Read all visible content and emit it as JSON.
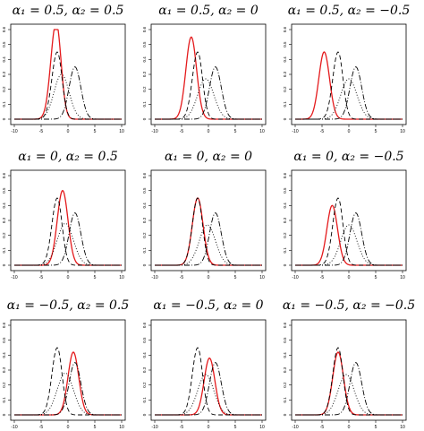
{
  "chart_data": [
    {
      "type": "line",
      "title": "α₁ = 0.5, α₂ = 0.5",
      "xlim": [
        -10,
        10
      ],
      "ylim": [
        0,
        0.6
      ],
      "x_ticks": [
        -10,
        -5,
        0,
        5,
        10
      ],
      "y_ticks": [
        0,
        0.1,
        0.2,
        0.3,
        0.4,
        0.5,
        0.6
      ],
      "series": [
        {
          "style": "solid",
          "color": "#e41a1c",
          "mode": -2.2,
          "peak": 0.65,
          "sd_left": 1.0,
          "sd_right": 0.9
        },
        {
          "style": "dashed",
          "color": "#000000",
          "mode": -2.0,
          "peak": 0.45,
          "sd_left": 1.0,
          "sd_right": 0.9
        },
        {
          "style": "dotted",
          "color": "#000000",
          "mode": -1.2,
          "peak": 0.3,
          "sd_left": 1.4,
          "sd_right": 1.4
        },
        {
          "style": "dotdash",
          "color": "#000000",
          "mode": 1.3,
          "peak": 0.35,
          "sd_left": 1.1,
          "sd_right": 1.1
        }
      ]
    },
    {
      "type": "line",
      "title": "α₁ = 0.5, α₂ = 0",
      "xlim": [
        -10,
        10
      ],
      "ylim": [
        0,
        0.6
      ],
      "x_ticks": [
        -10,
        -5,
        0,
        5,
        10
      ],
      "y_ticks": [
        0,
        0.1,
        0.2,
        0.3,
        0.4,
        0.5,
        0.6
      ],
      "series": [
        {
          "style": "solid",
          "color": "#e41a1c",
          "mode": -3.2,
          "peak": 0.55,
          "sd_left": 1.0,
          "sd_right": 1.0
        },
        {
          "style": "dashed",
          "color": "#000000",
          "mode": -2.0,
          "peak": 0.45,
          "sd_left": 1.0,
          "sd_right": 0.9
        },
        {
          "style": "dotted",
          "color": "#000000",
          "mode": -0.5,
          "peak": 0.27,
          "sd_left": 1.5,
          "sd_right": 1.5
        },
        {
          "style": "dotdash",
          "color": "#000000",
          "mode": 1.3,
          "peak": 0.35,
          "sd_left": 1.1,
          "sd_right": 1.1
        }
      ]
    },
    {
      "type": "line",
      "title": "α₁ = 0.5, α₂ = −0.5",
      "xlim": [
        -10,
        10
      ],
      "ylim": [
        0,
        0.6
      ],
      "x_ticks": [
        -10,
        -5,
        0,
        5,
        10
      ],
      "y_ticks": [
        0,
        0.1,
        0.2,
        0.3,
        0.4,
        0.5,
        0.6
      ],
      "series": [
        {
          "style": "solid",
          "color": "#e41a1c",
          "mode": -4.6,
          "peak": 0.45,
          "sd_left": 1.0,
          "sd_right": 1.0
        },
        {
          "style": "dashed",
          "color": "#000000",
          "mode": -2.0,
          "peak": 0.45,
          "sd_left": 1.0,
          "sd_right": 0.9
        },
        {
          "style": "dotted",
          "color": "#000000",
          "mode": 0.0,
          "peak": 0.27,
          "sd_left": 1.5,
          "sd_right": 1.5
        },
        {
          "style": "dotdash",
          "color": "#000000",
          "mode": 1.3,
          "peak": 0.35,
          "sd_left": 1.1,
          "sd_right": 1.1
        }
      ]
    },
    {
      "type": "line",
      "title": "α₁ = 0, α₂ = 0.5",
      "xlim": [
        -10,
        10
      ],
      "ylim": [
        0,
        0.6
      ],
      "x_ticks": [
        -10,
        -5,
        0,
        5,
        10
      ],
      "y_ticks": [
        0,
        0.1,
        0.2,
        0.3,
        0.4,
        0.5,
        0.6
      ],
      "series": [
        {
          "style": "solid",
          "color": "#e41a1c",
          "mode": -1.0,
          "peak": 0.5,
          "sd_left": 1.0,
          "sd_right": 1.0
        },
        {
          "style": "dashed",
          "color": "#000000",
          "mode": -2.0,
          "peak": 0.45,
          "sd_left": 1.0,
          "sd_right": 0.9
        },
        {
          "style": "dotted",
          "color": "#000000",
          "mode": -0.5,
          "peak": 0.28,
          "sd_left": 1.5,
          "sd_right": 1.5
        },
        {
          "style": "dotdash",
          "color": "#000000",
          "mode": 1.3,
          "peak": 0.35,
          "sd_left": 1.1,
          "sd_right": 1.1
        }
      ]
    },
    {
      "type": "line",
      "title": "α₁ = 0, α₂ = 0",
      "xlim": [
        -10,
        10
      ],
      "ylim": [
        0,
        0.6
      ],
      "x_ticks": [
        -10,
        -5,
        0,
        5,
        10
      ],
      "y_ticks": [
        0,
        0.1,
        0.2,
        0.3,
        0.4,
        0.5,
        0.6
      ],
      "series": [
        {
          "style": "solid",
          "color": "#e41a1c",
          "mode": -2.0,
          "peak": 0.45,
          "sd_left": 1.0,
          "sd_right": 1.0
        },
        {
          "style": "dashed",
          "color": "#000000",
          "mode": -2.0,
          "peak": 0.45,
          "sd_left": 1.0,
          "sd_right": 0.9
        },
        {
          "style": "dotted",
          "color": "#000000",
          "mode": -0.2,
          "peak": 0.27,
          "sd_left": 1.5,
          "sd_right": 1.5
        },
        {
          "style": "dotdash",
          "color": "#000000",
          "mode": 1.3,
          "peak": 0.35,
          "sd_left": 1.1,
          "sd_right": 1.1
        }
      ]
    },
    {
      "type": "line",
      "title": "α₁ = 0, α₂ = −0.5",
      "xlim": [
        -10,
        10
      ],
      "ylim": [
        0,
        0.6
      ],
      "x_ticks": [
        -10,
        -5,
        0,
        5,
        10
      ],
      "y_ticks": [
        0,
        0.1,
        0.2,
        0.3,
        0.4,
        0.5,
        0.6
      ],
      "series": [
        {
          "style": "solid",
          "color": "#e41a1c",
          "mode": -3.1,
          "peak": 0.4,
          "sd_left": 1.0,
          "sd_right": 1.0
        },
        {
          "style": "dashed",
          "color": "#000000",
          "mode": -2.0,
          "peak": 0.45,
          "sd_left": 1.0,
          "sd_right": 0.9
        },
        {
          "style": "dotted",
          "color": "#000000",
          "mode": 0.0,
          "peak": 0.27,
          "sd_left": 1.5,
          "sd_right": 1.5
        },
        {
          "style": "dotdash",
          "color": "#000000",
          "mode": 1.3,
          "peak": 0.35,
          "sd_left": 1.1,
          "sd_right": 1.1
        }
      ]
    },
    {
      "type": "line",
      "title": "α₁ = −0.5, α₂ = 0.5",
      "xlim": [
        -10,
        10
      ],
      "ylim": [
        0,
        0.6
      ],
      "x_ticks": [
        -10,
        -5,
        0,
        5,
        10
      ],
      "y_ticks": [
        0,
        0.1,
        0.2,
        0.3,
        0.4,
        0.5,
        0.6
      ],
      "series": [
        {
          "style": "solid",
          "color": "#e41a1c",
          "mode": 1.0,
          "peak": 0.42,
          "sd_left": 1.0,
          "sd_right": 1.0
        },
        {
          "style": "dashed",
          "color": "#000000",
          "mode": -2.0,
          "peak": 0.45,
          "sd_left": 1.0,
          "sd_right": 0.9
        },
        {
          "style": "dotted",
          "color": "#000000",
          "mode": -0.5,
          "peak": 0.28,
          "sd_left": 1.5,
          "sd_right": 1.5
        },
        {
          "style": "dotdash",
          "color": "#000000",
          "mode": 1.3,
          "peak": 0.35,
          "sd_left": 1.1,
          "sd_right": 1.1
        }
      ]
    },
    {
      "type": "line",
      "title": "α₁ = −0.5, α₂ = 0",
      "xlim": [
        -10,
        10
      ],
      "ylim": [
        0,
        0.6
      ],
      "x_ticks": [
        -10,
        -5,
        0,
        5,
        10
      ],
      "y_ticks": [
        0,
        0.1,
        0.2,
        0.3,
        0.4,
        0.5,
        0.6
      ],
      "series": [
        {
          "style": "solid",
          "color": "#e41a1c",
          "mode": 0.2,
          "peak": 0.38,
          "sd_left": 1.0,
          "sd_right": 1.0
        },
        {
          "style": "dashed",
          "color": "#000000",
          "mode": -2.0,
          "peak": 0.45,
          "sd_left": 1.0,
          "sd_right": 0.9
        },
        {
          "style": "dotted",
          "color": "#000000",
          "mode": -0.5,
          "peak": 0.27,
          "sd_left": 1.5,
          "sd_right": 1.5
        },
        {
          "style": "dotdash",
          "color": "#000000",
          "mode": 1.3,
          "peak": 0.35,
          "sd_left": 1.1,
          "sd_right": 1.1
        }
      ]
    },
    {
      "type": "line",
      "title": "α₁ = −0.5, α₂ = −0.5",
      "xlim": [
        -10,
        10
      ],
      "ylim": [
        0,
        0.6
      ],
      "x_ticks": [
        -10,
        -5,
        0,
        5,
        10
      ],
      "y_ticks": [
        0,
        0.1,
        0.2,
        0.3,
        0.4,
        0.5,
        0.6
      ],
      "series": [
        {
          "style": "solid",
          "color": "#e41a1c",
          "mode": -2.0,
          "peak": 0.42,
          "sd_left": 1.0,
          "sd_right": 1.0
        },
        {
          "style": "dashed",
          "color": "#000000",
          "mode": -2.0,
          "peak": 0.45,
          "sd_left": 1.0,
          "sd_right": 0.9
        },
        {
          "style": "dotted",
          "color": "#000000",
          "mode": -0.5,
          "peak": 0.27,
          "sd_left": 1.5,
          "sd_right": 1.5
        },
        {
          "style": "dotdash",
          "color": "#000000",
          "mode": 1.3,
          "peak": 0.35,
          "sd_left": 1.1,
          "sd_right": 1.1
        }
      ]
    }
  ]
}
